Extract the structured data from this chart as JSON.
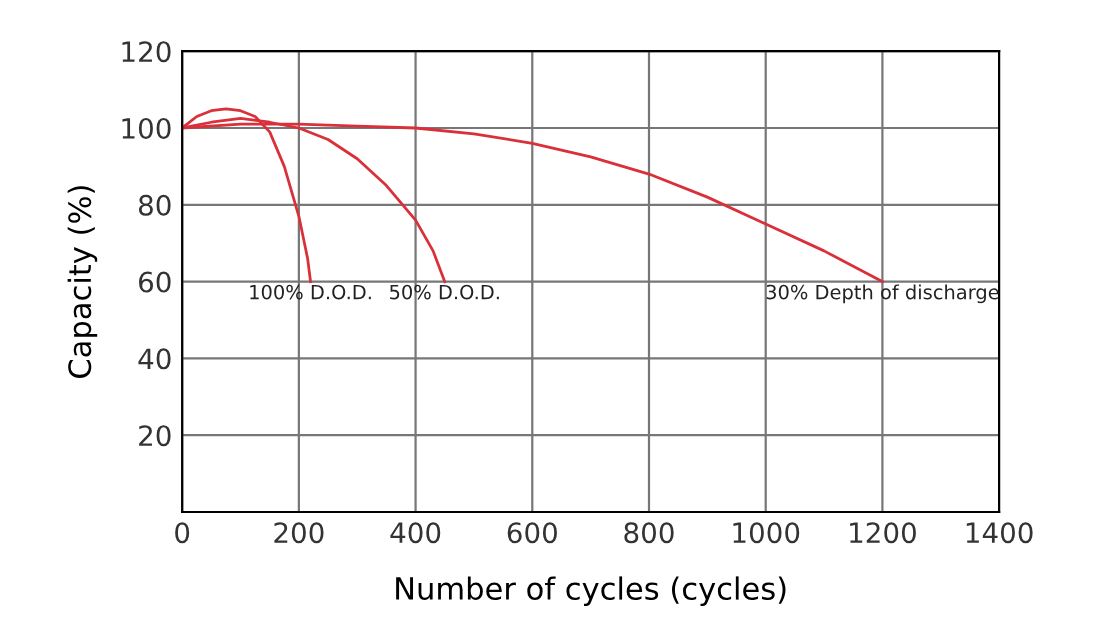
{
  "chart_data": {
    "type": "line",
    "xlabel": "Number of cycles (cycles)",
    "ylabel": "Capacity (%)",
    "xlim": [
      0,
      1400
    ],
    "ylim": [
      0,
      120
    ],
    "xticks": [
      0,
      200,
      400,
      600,
      800,
      1000,
      1200,
      1400
    ],
    "yticks": [
      {
        "value": 0,
        "label": null
      },
      20,
      40,
      60,
      80,
      100,
      120
    ],
    "grid": true,
    "marker": "none",
    "line_style": "solid",
    "series": [
      {
        "color": "#d9303a",
        "x": [
          0,
          25,
          50,
          75,
          100,
          125,
          150,
          175,
          200,
          215,
          220
        ],
        "values": [
          100,
          103,
          104.5,
          105,
          104.5,
          103,
          99,
          90,
          77,
          66,
          60
        ]
      },
      {
        "color": "#d9303a",
        "x": [
          0,
          50,
          100,
          150,
          200,
          250,
          300,
          350,
          400,
          430,
          450
        ],
        "values": [
          100,
          101.5,
          102.5,
          101.5,
          100,
          97,
          92,
          85,
          76,
          68,
          60
        ]
      },
      {
        "color": "#d9303a",
        "x": [
          0,
          100,
          200,
          300,
          400,
          500,
          600,
          700,
          800,
          900,
          1000,
          1100,
          1200
        ],
        "values": [
          100,
          101,
          101,
          100.5,
          100,
          98.5,
          96,
          92.5,
          88,
          82,
          75,
          68,
          60
        ]
      }
    ],
    "annotations": [
      {
        "text": "100% D.O.D.",
        "x": 220,
        "y": 60
      },
      {
        "text": "50% D.O.D.",
        "x": 450,
        "y": 60
      },
      {
        "text": "30% Depth of discharge",
        "x": 1200,
        "y": 60
      }
    ]
  }
}
